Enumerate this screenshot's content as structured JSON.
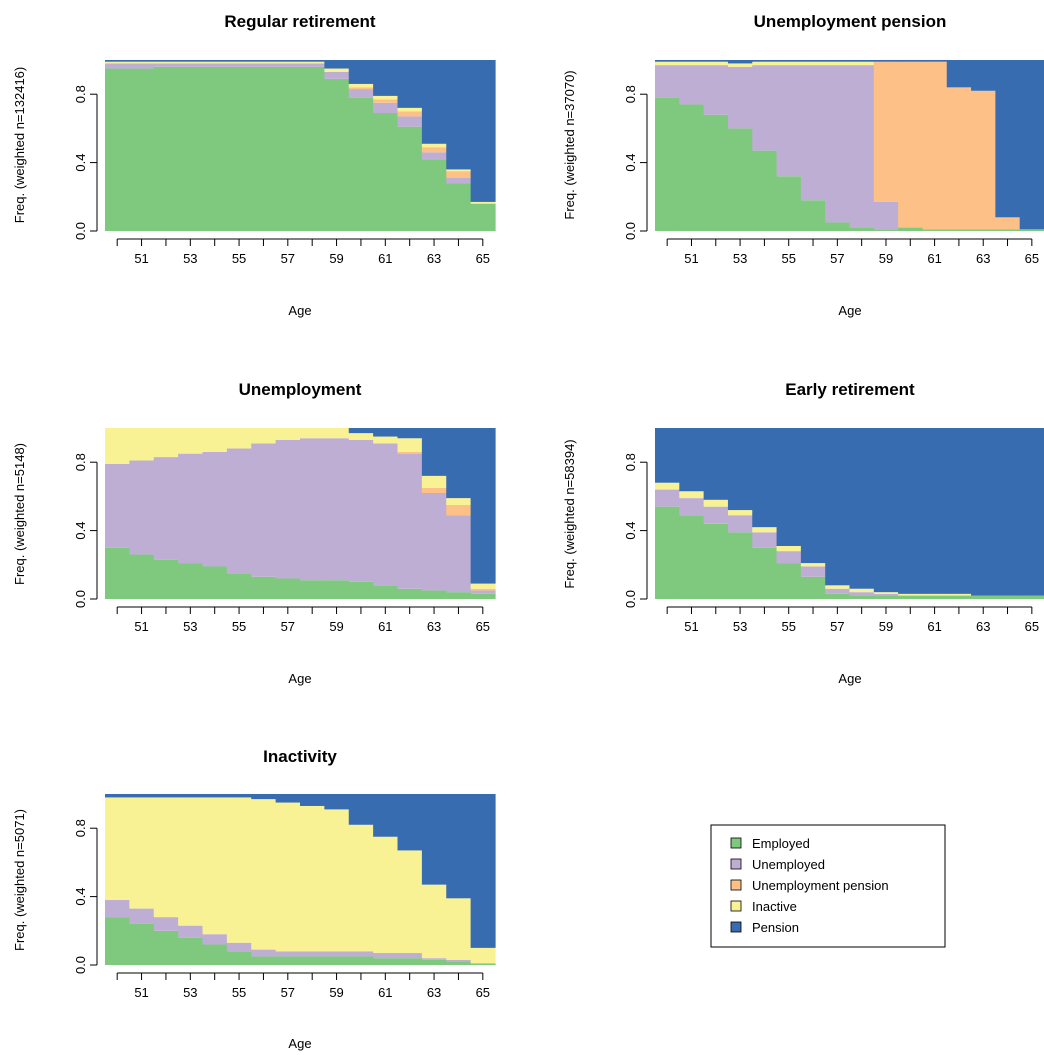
{
  "states": [
    {
      "name": "Employed",
      "color": "#7fc97f"
    },
    {
      "name": "Unemployed",
      "color": "#beaed4"
    },
    {
      "name": "Unemployment pension",
      "color": "#fdc086"
    },
    {
      "name": "Inactive",
      "color": "#f8f294"
    },
    {
      "name": "Pension",
      "color": "#386cb0"
    }
  ],
  "chart_data": [
    {
      "type": "bar",
      "stacked": true,
      "title": "Regular retirement",
      "xlabel": "Age",
      "ylabel": "Freq. (weighted n=132416)",
      "ylim": [
        0,
        1
      ],
      "yticks": [
        "0.0",
        "0.4",
        "0.8"
      ],
      "xticks": [
        "51",
        "53",
        "55",
        "57",
        "59",
        "61",
        "63",
        "65"
      ],
      "categories": [
        50,
        51,
        52,
        53,
        54,
        55,
        56,
        57,
        58,
        59,
        60,
        61,
        62,
        63,
        64,
        65
      ],
      "series": [
        {
          "name": "Employed",
          "values": [
            0.95,
            0.95,
            0.96,
            0.96,
            0.96,
            0.96,
            0.96,
            0.96,
            0.96,
            0.89,
            0.78,
            0.69,
            0.61,
            0.42,
            0.28,
            0.16
          ]
        },
        {
          "name": "Unemployed",
          "values": [
            0.03,
            0.03,
            0.02,
            0.02,
            0.02,
            0.02,
            0.02,
            0.02,
            0.02,
            0.04,
            0.05,
            0.06,
            0.06,
            0.04,
            0.03,
            0.0
          ]
        },
        {
          "name": "Unemployment pension",
          "values": [
            0.0,
            0.0,
            0.0,
            0.0,
            0.0,
            0.0,
            0.0,
            0.0,
            0.0,
            0.0,
            0.01,
            0.02,
            0.03,
            0.03,
            0.04,
            0.0
          ]
        },
        {
          "name": "Inactive",
          "values": [
            0.01,
            0.01,
            0.01,
            0.01,
            0.01,
            0.01,
            0.01,
            0.01,
            0.01,
            0.02,
            0.02,
            0.02,
            0.02,
            0.02,
            0.01,
            0.01
          ]
        },
        {
          "name": "Pension",
          "values": [
            0.01,
            0.01,
            0.01,
            0.01,
            0.01,
            0.01,
            0.01,
            0.01,
            0.01,
            0.05,
            0.14,
            0.21,
            0.28,
            0.49,
            0.64,
            0.83
          ]
        }
      ]
    },
    {
      "type": "bar",
      "stacked": true,
      "title": "Unemployment pension",
      "xlabel": "Age",
      "ylabel": "Freq. (weighted n=37070)",
      "ylim": [
        0,
        1
      ],
      "yticks": [
        "0.0",
        "0.4",
        "0.8"
      ],
      "xticks": [
        "51",
        "53",
        "55",
        "57",
        "59",
        "61",
        "63",
        "65"
      ],
      "categories": [
        50,
        51,
        52,
        53,
        54,
        55,
        56,
        57,
        58,
        59,
        60,
        61,
        62,
        63,
        64,
        65
      ],
      "series": [
        {
          "name": "Employed",
          "values": [
            0.78,
            0.74,
            0.68,
            0.6,
            0.47,
            0.32,
            0.18,
            0.05,
            0.02,
            0.01,
            0.02,
            0.01,
            0.01,
            0.01,
            0.01,
            0.01
          ]
        },
        {
          "name": "Unemployed",
          "values": [
            0.19,
            0.23,
            0.29,
            0.36,
            0.5,
            0.65,
            0.79,
            0.92,
            0.95,
            0.16,
            0.0,
            0.0,
            0.0,
            0.0,
            0.0,
            0.0
          ]
        },
        {
          "name": "Unemployment pension",
          "values": [
            0.0,
            0.0,
            0.0,
            0.0,
            0.0,
            0.0,
            0.0,
            0.0,
            0.0,
            0.82,
            0.97,
            0.98,
            0.83,
            0.81,
            0.07,
            0.0
          ]
        },
        {
          "name": "Inactive",
          "values": [
            0.02,
            0.02,
            0.02,
            0.02,
            0.02,
            0.02,
            0.02,
            0.02,
            0.02,
            0.0,
            0.0,
            0.0,
            0.0,
            0.0,
            0.0,
            0.0
          ]
        },
        {
          "name": "Pension",
          "values": [
            0.01,
            0.01,
            0.01,
            0.02,
            0.01,
            0.01,
            0.01,
            0.01,
            0.01,
            0.01,
            0.01,
            0.01,
            0.16,
            0.18,
            0.92,
            0.99
          ]
        }
      ]
    },
    {
      "type": "bar",
      "stacked": true,
      "title": "Unemployment",
      "xlabel": "Age",
      "ylabel": "Freq. (weighted n=5148)",
      "ylim": [
        0,
        1
      ],
      "yticks": [
        "0.0",
        "0.4",
        "0.8"
      ],
      "xticks": [
        "51",
        "53",
        "55",
        "57",
        "59",
        "61",
        "63",
        "65"
      ],
      "categories": [
        50,
        51,
        52,
        53,
        54,
        55,
        56,
        57,
        58,
        59,
        60,
        61,
        62,
        63,
        64,
        65
      ],
      "series": [
        {
          "name": "Employed",
          "values": [
            0.3,
            0.26,
            0.23,
            0.21,
            0.19,
            0.15,
            0.13,
            0.12,
            0.11,
            0.11,
            0.1,
            0.08,
            0.06,
            0.05,
            0.04,
            0.03
          ]
        },
        {
          "name": "Unemployed",
          "values": [
            0.49,
            0.55,
            0.6,
            0.64,
            0.67,
            0.73,
            0.78,
            0.81,
            0.83,
            0.83,
            0.83,
            0.83,
            0.79,
            0.57,
            0.45,
            0.02
          ]
        },
        {
          "name": "Unemployment pension",
          "values": [
            0.0,
            0.0,
            0.0,
            0.0,
            0.0,
            0.0,
            0.0,
            0.0,
            0.0,
            0.0,
            0.0,
            0.0,
            0.01,
            0.03,
            0.06,
            0.01
          ]
        },
        {
          "name": "Inactive",
          "values": [
            0.21,
            0.19,
            0.17,
            0.15,
            0.14,
            0.12,
            0.09,
            0.07,
            0.06,
            0.06,
            0.04,
            0.04,
            0.08,
            0.07,
            0.04,
            0.03
          ]
        },
        {
          "name": "Pension",
          "values": [
            0.0,
            0.0,
            0.0,
            0.0,
            0.0,
            0.0,
            0.0,
            0.0,
            0.0,
            0.0,
            0.03,
            0.05,
            0.06,
            0.28,
            0.41,
            0.91
          ]
        }
      ]
    },
    {
      "type": "bar",
      "stacked": true,
      "title": "Early retirement",
      "xlabel": "Age",
      "ylabel": "Freq. (weighted n=58394)",
      "ylim": [
        0,
        1
      ],
      "yticks": [
        "0.0",
        "0.4",
        "0.8"
      ],
      "xticks": [
        "51",
        "53",
        "55",
        "57",
        "59",
        "61",
        "63",
        "65"
      ],
      "categories": [
        50,
        51,
        52,
        53,
        54,
        55,
        56,
        57,
        58,
        59,
        60,
        61,
        62,
        63,
        64,
        65
      ],
      "series": [
        {
          "name": "Employed",
          "values": [
            0.54,
            0.49,
            0.44,
            0.39,
            0.3,
            0.21,
            0.13,
            0.03,
            0.02,
            0.02,
            0.02,
            0.02,
            0.02,
            0.02,
            0.02,
            0.02
          ]
        },
        {
          "name": "Unemployed",
          "values": [
            0.1,
            0.1,
            0.1,
            0.1,
            0.09,
            0.07,
            0.06,
            0.03,
            0.02,
            0.01,
            0.0,
            0.0,
            0.0,
            0.0,
            0.0,
            0.0
          ]
        },
        {
          "name": "Unemployment pension",
          "values": [
            0.0,
            0.0,
            0.0,
            0.0,
            0.0,
            0.0,
            0.0,
            0.0,
            0.0,
            0.0,
            0.0,
            0.0,
            0.0,
            0.0,
            0.0,
            0.0
          ]
        },
        {
          "name": "Inactive",
          "values": [
            0.04,
            0.04,
            0.04,
            0.03,
            0.03,
            0.03,
            0.02,
            0.02,
            0.02,
            0.01,
            0.01,
            0.01,
            0.01,
            0.0,
            0.0,
            0.0
          ]
        },
        {
          "name": "Pension",
          "values": [
            0.32,
            0.37,
            0.42,
            0.48,
            0.58,
            0.69,
            0.79,
            0.92,
            0.94,
            0.96,
            0.97,
            0.97,
            0.97,
            0.98,
            0.98,
            0.98
          ]
        }
      ]
    },
    {
      "type": "bar",
      "stacked": true,
      "title": "Inactivity",
      "xlabel": "Age",
      "ylabel": "Freq. (weighted n=5071)",
      "ylim": [
        0,
        1
      ],
      "yticks": [
        "0.0",
        "0.4",
        "0.8"
      ],
      "xticks": [
        "51",
        "53",
        "55",
        "57",
        "59",
        "61",
        "63",
        "65"
      ],
      "categories": [
        50,
        51,
        52,
        53,
        54,
        55,
        56,
        57,
        58,
        59,
        60,
        61,
        62,
        63,
        64,
        65
      ],
      "series": [
        {
          "name": "Employed",
          "values": [
            0.28,
            0.24,
            0.2,
            0.16,
            0.12,
            0.08,
            0.05,
            0.05,
            0.05,
            0.05,
            0.05,
            0.04,
            0.04,
            0.03,
            0.02,
            0.01
          ]
        },
        {
          "name": "Unemployed",
          "values": [
            0.1,
            0.09,
            0.08,
            0.07,
            0.06,
            0.05,
            0.04,
            0.03,
            0.03,
            0.03,
            0.03,
            0.03,
            0.03,
            0.01,
            0.01,
            0.0
          ]
        },
        {
          "name": "Unemployment pension",
          "values": [
            0.0,
            0.0,
            0.0,
            0.0,
            0.0,
            0.0,
            0.0,
            0.0,
            0.0,
            0.0,
            0.0,
            0.0,
            0.0,
            0.0,
            0.0,
            0.0
          ]
        },
        {
          "name": "Inactive",
          "values": [
            0.6,
            0.65,
            0.7,
            0.75,
            0.8,
            0.85,
            0.88,
            0.87,
            0.85,
            0.83,
            0.74,
            0.68,
            0.6,
            0.43,
            0.36,
            0.09
          ]
        },
        {
          "name": "Pension",
          "values": [
            0.02,
            0.02,
            0.02,
            0.02,
            0.02,
            0.02,
            0.03,
            0.05,
            0.07,
            0.09,
            0.18,
            0.25,
            0.33,
            0.53,
            0.61,
            0.9
          ]
        }
      ]
    }
  ]
}
